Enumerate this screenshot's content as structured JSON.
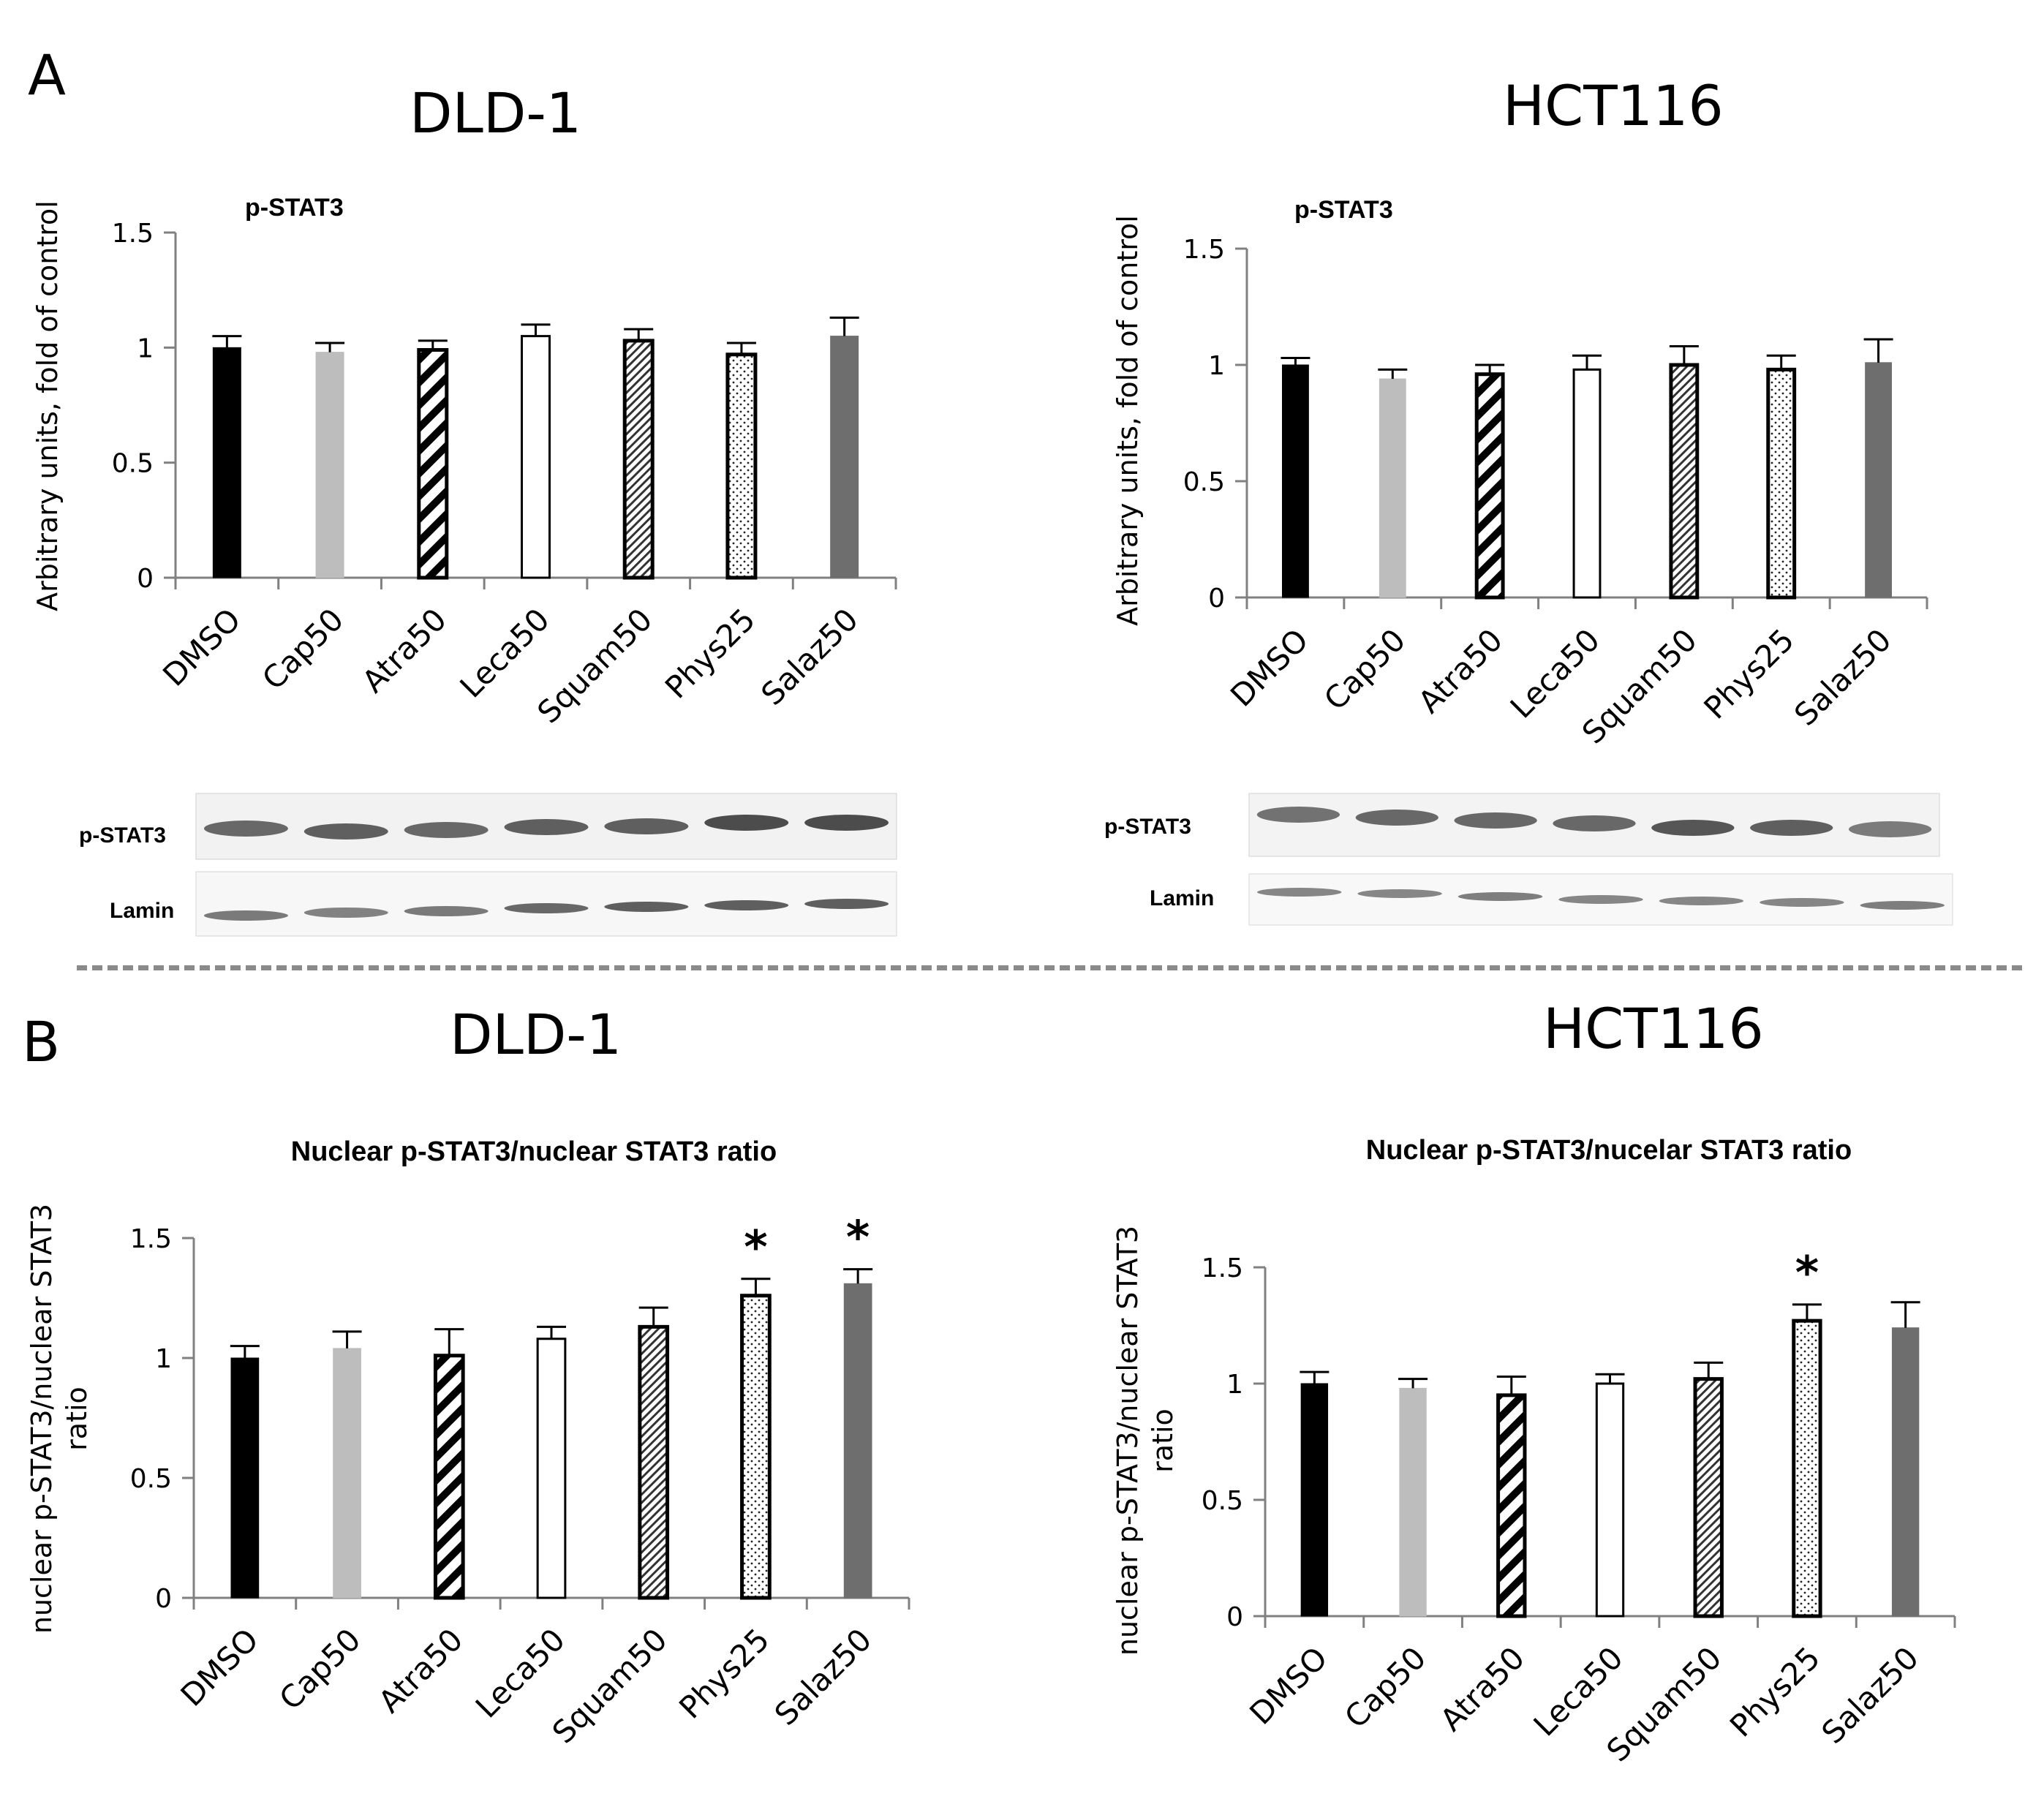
{
  "panels": {
    "A": {
      "letter": "A",
      "dld1": "DLD-1",
      "hct116": "HCT116"
    },
    "B": {
      "letter": "B",
      "dld1": "DLD-1",
      "hct116": "HCT116"
    }
  },
  "blots": {
    "dld1": {
      "top_label": "p-STAT3",
      "bottom_label": "Lamin"
    },
    "hct116": {
      "top_label": "p-STAT3",
      "bottom_label": "Lamin"
    }
  },
  "colors": {
    "bar_dark": "#000000",
    "bar_light_gray": "#bdbdbd",
    "bar_mid_gray": "#6e6e6e",
    "axis": "#808080"
  },
  "chart_data": [
    {
      "id": "A_dld1",
      "type": "bar",
      "title": "p-STAT3",
      "ylabel": [
        "Arbitrary units, fold of control"
      ],
      "categories": [
        "DMSO",
        "Cap50",
        "Atra50",
        "Leca50",
        "Squam50",
        "Phys25",
        "Salaz50"
      ],
      "values": [
        1.0,
        0.98,
        0.99,
        1.05,
        1.03,
        0.97,
        1.05
      ],
      "errors": [
        0.05,
        0.04,
        0.04,
        0.05,
        0.05,
        0.05,
        0.08
      ],
      "patterns": [
        "black",
        "lightgray",
        "diagonal",
        "white",
        "crosshatch",
        "dots",
        "darkgray"
      ],
      "significance": [
        "",
        "",
        "",
        "",
        "",
        "",
        ""
      ],
      "ylim": [
        0,
        1.5
      ],
      "yticks": [
        0,
        0.5,
        1,
        1.5
      ],
      "ytick_labels": [
        "0",
        "0.5",
        "1",
        "1.5"
      ]
    },
    {
      "id": "A_hct116",
      "type": "bar",
      "title": "p-STAT3",
      "ylabel": [
        "Arbitrary units, fold of control"
      ],
      "categories": [
        "DMSO",
        "Cap50",
        "Atra50",
        "Leca50",
        "Squam50",
        "Phys25",
        "Salaz50"
      ],
      "values": [
        1.0,
        0.94,
        0.96,
        0.98,
        1.0,
        0.98,
        1.01
      ],
      "errors": [
        0.03,
        0.04,
        0.04,
        0.06,
        0.08,
        0.06,
        0.1
      ],
      "patterns": [
        "black",
        "lightgray",
        "diagonal",
        "white",
        "crosshatch",
        "dots",
        "darkgray"
      ],
      "significance": [
        "",
        "",
        "",
        "",
        "",
        "",
        ""
      ],
      "ylim": [
        0,
        1.5
      ],
      "yticks": [
        0,
        0.5,
        1,
        1.5
      ],
      "ytick_labels": [
        "0",
        "0.5",
        "1",
        "1.5"
      ]
    },
    {
      "id": "B_dld1",
      "type": "bar",
      "title": "Nuclear p-STAT3/nuclear STAT3  ratio",
      "ylabel": [
        "nuclear p-STAT3/nuclear STAT3",
        "ratio"
      ],
      "categories": [
        "DMSO",
        "Cap50",
        "Atra50",
        "Leca50",
        "Squam50",
        "Phys25",
        "Salaz50"
      ],
      "values": [
        1.0,
        1.04,
        1.01,
        1.08,
        1.13,
        1.26,
        1.31
      ],
      "errors": [
        0.05,
        0.07,
        0.11,
        0.05,
        0.08,
        0.07,
        0.06
      ],
      "patterns": [
        "black",
        "lightgray",
        "diagonal",
        "white",
        "crosshatch",
        "dots",
        "darkgray"
      ],
      "significance": [
        "",
        "",
        "",
        "",
        "",
        "*",
        "*"
      ],
      "ylim": [
        0,
        1.5
      ],
      "yticks": [
        0,
        0.5,
        1,
        1.5
      ],
      "ytick_labels": [
        "0",
        "0.5",
        "1",
        "1.5"
      ]
    },
    {
      "id": "B_hct116",
      "type": "bar",
      "title": "Nuclear p-STAT3/nucelar STAT3 ratio",
      "ylabel": [
        "nuclear p-STAT3/nuclear STAT3",
        "ratio"
      ],
      "categories": [
        "DMSO",
        "Cap50",
        "Atra50",
        "Leca50",
        "Squam50",
        "Phys25",
        "Salaz50"
      ],
      "values": [
        1.0,
        0.98,
        0.95,
        1.0,
        1.02,
        1.27,
        1.24
      ],
      "errors": [
        0.05,
        0.04,
        0.08,
        0.04,
        0.07,
        0.07,
        0.11
      ],
      "patterns": [
        "black",
        "lightgray",
        "diagonal",
        "white",
        "crosshatch",
        "dots",
        "darkgray"
      ],
      "significance": [
        "",
        "",
        "",
        "",
        "",
        "*",
        ""
      ],
      "ylim": [
        0,
        1.5
      ],
      "yticks": [
        0,
        0.5,
        1,
        1.5
      ],
      "ytick_labels": [
        "0",
        "0.5",
        "1",
        "1.5"
      ]
    }
  ]
}
